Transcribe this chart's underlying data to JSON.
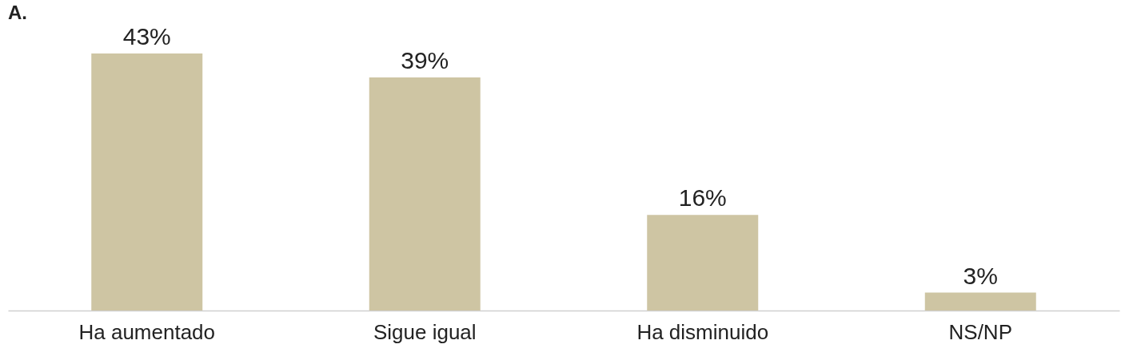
{
  "chart_data": {
    "type": "bar",
    "title": "A.",
    "categories": [
      "Ha aumentado",
      "Sigue igual",
      "Ha disminuido",
      "NS/NP"
    ],
    "values": [
      43,
      39,
      16,
      3
    ],
    "value_labels": [
      "43%",
      "39%",
      "16%",
      "3%"
    ],
    "color": "#cec5a3",
    "grid": false
  }
}
